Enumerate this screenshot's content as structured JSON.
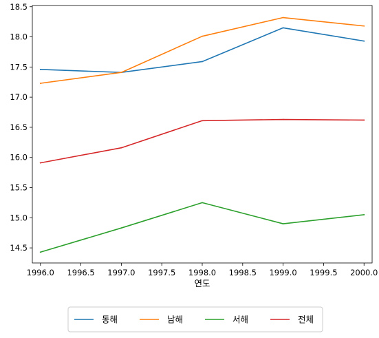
{
  "chart_data": {
    "type": "line",
    "title": "",
    "xlabel": "연도",
    "ylabel": "",
    "x": [
      1996,
      1997,
      1998,
      1999,
      2000
    ],
    "xlim": [
      1995.9,
      2000.1
    ],
    "ylim": [
      14.25,
      18.52
    ],
    "xticks": [
      1996.0,
      1996.5,
      1997.0,
      1997.5,
      1998.0,
      1998.5,
      1999.0,
      1999.5,
      2000.0
    ],
    "xtick_labels": [
      "1996.0",
      "1996.5",
      "1997.0",
      "1997.5",
      "1998.0",
      "1998.5",
      "1999.0",
      "1999.5",
      "2000.0"
    ],
    "yticks": [
      14.5,
      15.0,
      15.5,
      16.0,
      16.5,
      17.0,
      17.5,
      18.0,
      18.5
    ],
    "ytick_labels": [
      "14.5",
      "15.0",
      "15.5",
      "16.0",
      "16.5",
      "17.0",
      "17.5",
      "18.0",
      "18.5"
    ],
    "grid": false,
    "legend_position": "bottom-center",
    "series": [
      {
        "name": "동해",
        "color": "#1f77b4",
        "values": [
          17.46,
          17.41,
          17.59,
          18.15,
          17.93
        ]
      },
      {
        "name": "남해",
        "color": "#ff7f0e",
        "values": [
          17.23,
          17.41,
          18.01,
          18.32,
          18.18
        ]
      },
      {
        "name": "서해",
        "color": "#2ca02c",
        "values": [
          14.43,
          14.83,
          15.25,
          14.9,
          15.05
        ]
      },
      {
        "name": "전체",
        "color": "#d62728",
        "values": [
          15.91,
          16.16,
          16.61,
          16.63,
          16.62
        ]
      }
    ]
  }
}
